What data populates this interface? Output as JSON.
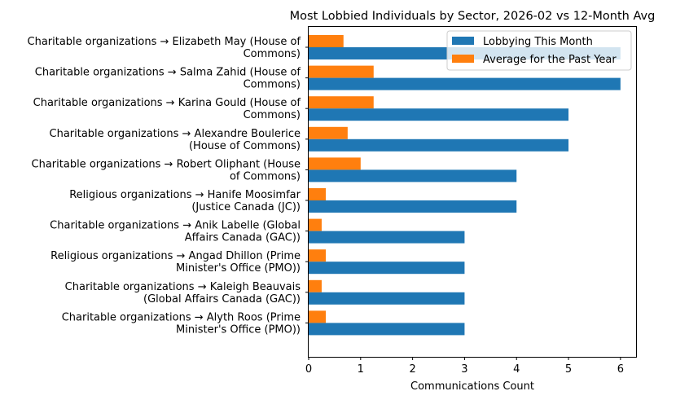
{
  "chart_data": {
    "type": "bar",
    "orientation": "horizontal",
    "title": "Most Lobbied Individuals by Sector, 2026-02 vs 12-Month Avg",
    "xlabel": "Communications Count",
    "ylabel": "",
    "xlim": [
      0,
      6.3
    ],
    "xticks": [
      "0",
      "1",
      "2",
      "3",
      "4",
      "5",
      "6"
    ],
    "grid": false,
    "legend_position": "top-right",
    "categories": [
      [
        "Charitable organizations → Elizabeth May (House of",
        "Commons)"
      ],
      [
        "Charitable organizations → Salma Zahid (House of",
        "Commons)"
      ],
      [
        "Charitable organizations → Karina Gould (House of",
        "Commons)"
      ],
      [
        "Charitable organizations → Alexandre Boulerice",
        "(House of Commons)"
      ],
      [
        "Charitable organizations → Robert Oliphant (House",
        "of Commons)"
      ],
      [
        "Religious organizations → Hanife Moosimfar",
        "(Justice Canada (JC))"
      ],
      [
        "Charitable organizations → Anik Labelle (Global",
        "Affairs Canada (GAC))"
      ],
      [
        "Religious organizations → Angad Dhillon (Prime",
        "Minister's Office (PMO))"
      ],
      [
        "Charitable organizations → Kaleigh Beauvais",
        "(Global Affairs Canada (GAC))"
      ],
      [
        "Charitable organizations → Alyth Roos (Prime",
        "Minister's Office (PMO))"
      ]
    ],
    "series": [
      {
        "name": "Lobbying This Month",
        "color": "#1f77b4",
        "values": [
          6,
          6,
          5,
          5,
          4,
          4,
          3,
          3,
          3,
          3
        ]
      },
      {
        "name": "Average for the Past Year",
        "color": "#ff7f0e",
        "values": [
          0.67,
          1.25,
          1.25,
          0.75,
          1.0,
          0.33,
          0.25,
          0.33,
          0.25,
          0.33
        ]
      }
    ]
  }
}
